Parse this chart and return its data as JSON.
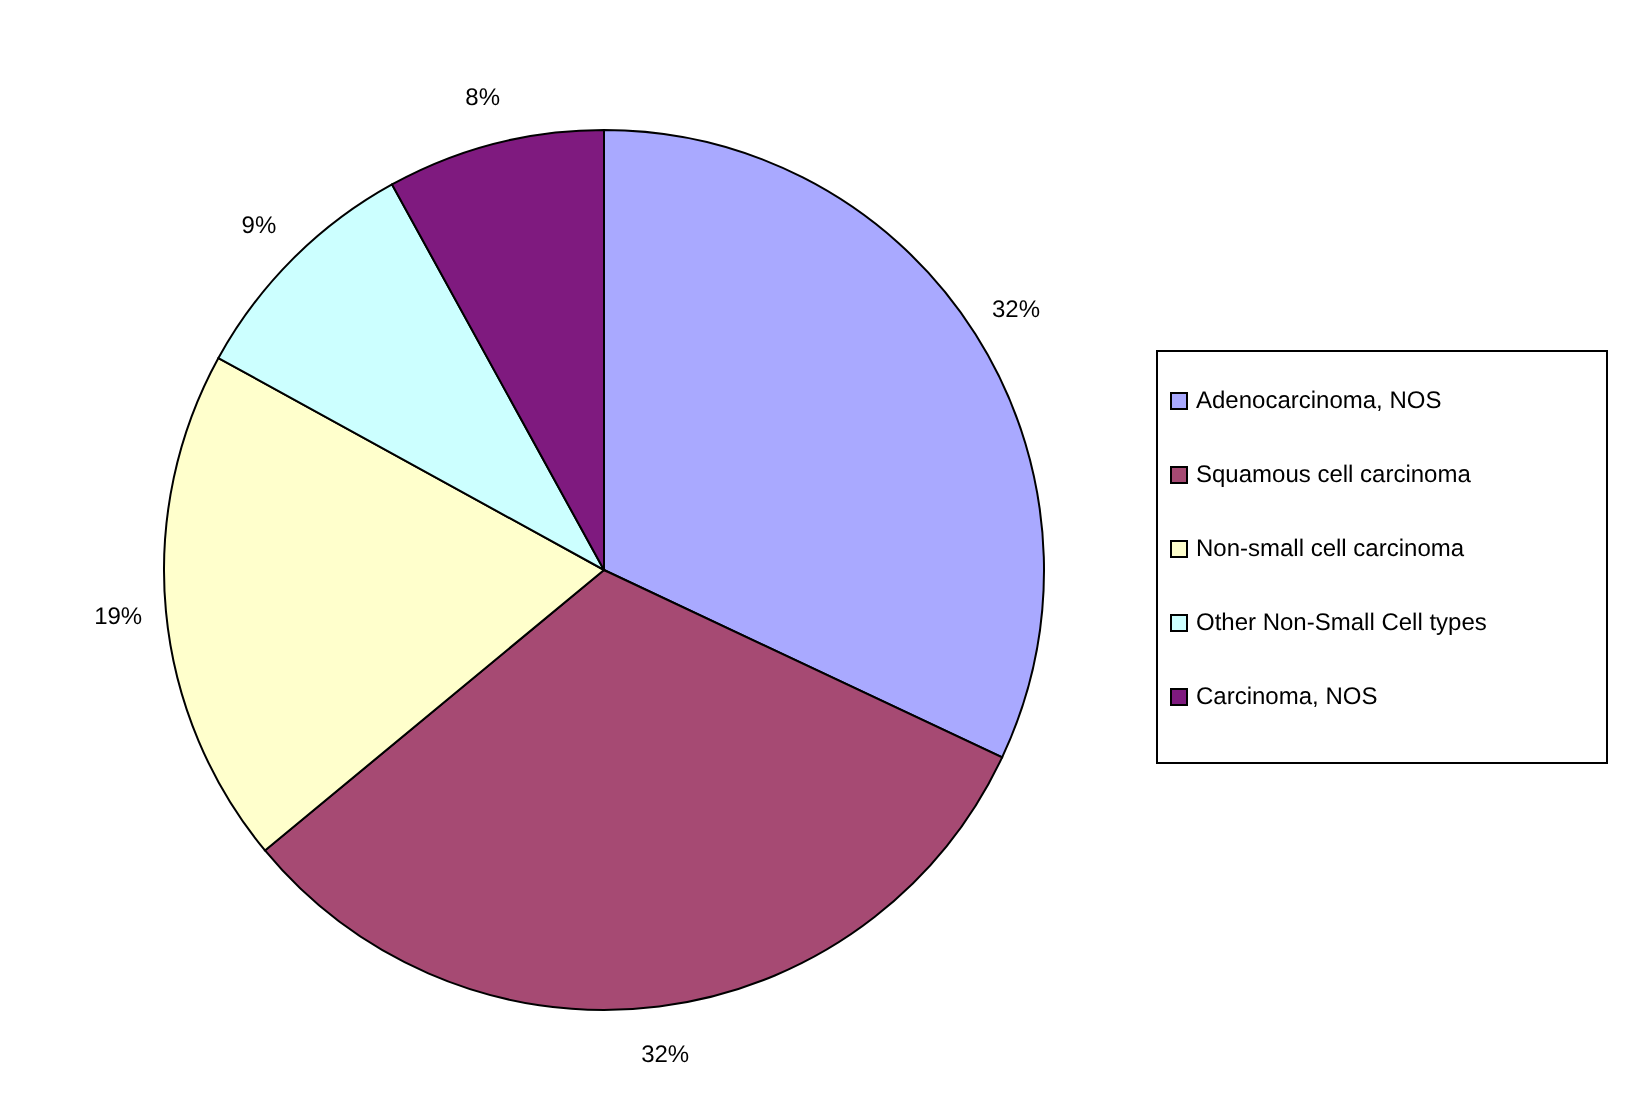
{
  "chart_data": {
    "type": "pie",
    "categories": [
      "Adenocarcinoma, NOS",
      "Squamous cell carcinoma",
      "Non-small cell carcinoma",
      "Other Non-Small Cell types",
      "Carcinoma, NOS"
    ],
    "values": [
      32,
      32,
      19,
      9,
      8
    ],
    "value_labels": [
      "32%",
      "32%",
      "19%",
      "9%",
      "8%"
    ],
    "colors": [
      "#a9a9ff",
      "#a64a73",
      "#ffffcc",
      "#ccffff",
      "#7f1a7f"
    ],
    "legend": "right"
  }
}
